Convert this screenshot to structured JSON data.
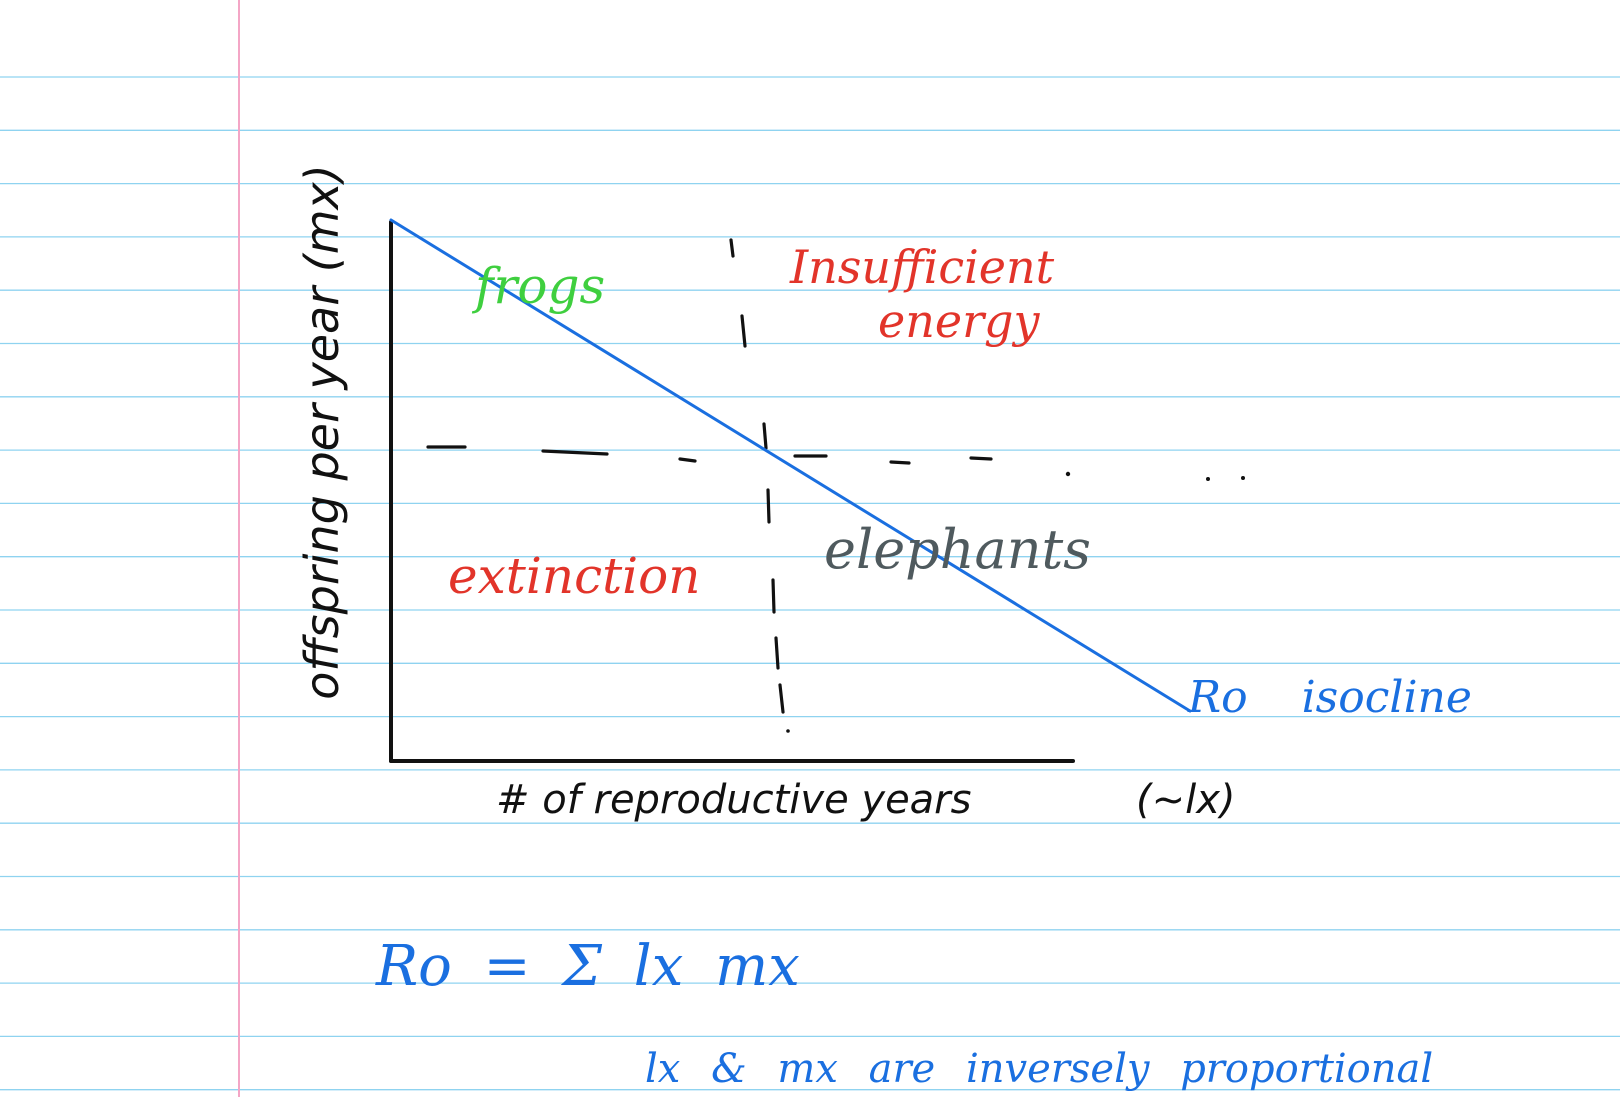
{
  "diagram": {
    "y_axis_label": "offspring per year (mx)",
    "x_axis_label": "# of reproductive years",
    "x_axis_label_suffix": "(~lx)",
    "quadrants": {
      "frogs": "frogs",
      "insufficient_energy_line1": "Insufficient",
      "insufficient_energy_line2": "energy",
      "extinction": "extinction",
      "elephants": "elephants"
    },
    "isocline_label": "Ro isocline"
  },
  "notes": {
    "equation": "Ro = Σ lx mx",
    "relationship": "lx & mx are inversely proportional"
  },
  "colors": {
    "ruled_line": "#8fd3f0",
    "margin_line": "#f4a6c6",
    "ink_black": "#111111",
    "ink_blue": "#1a6fe0",
    "ink_green": "#3fcf3f",
    "ink_red": "#e2342a",
    "ink_gray": "#4f5a5e"
  }
}
